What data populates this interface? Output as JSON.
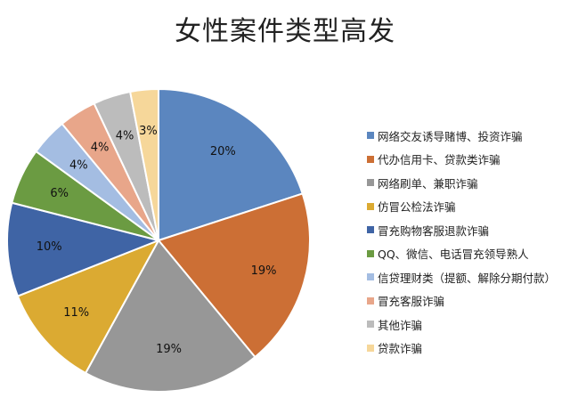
{
  "chart_data": {
    "type": "pie",
    "title": "女性案件类型高发",
    "categories": [
      "网络交友诱导赌博、投资诈骗",
      "代办信用卡、贷款类诈骗",
      "网络刷单、兼职诈骗",
      "仿冒公检法诈骗",
      "冒充购物客服退款诈骗",
      "QQ、微信、电话冒充领导熟人",
      "信贷理财类（提额、解除分期付款）",
      "冒充客服诈骗",
      "其他诈骗",
      "贷款诈骗"
    ],
    "values": [
      20,
      19,
      19,
      11,
      10,
      6,
      4,
      4,
      4,
      3
    ],
    "value_labels": [
      "20%",
      "19%",
      "19%",
      "11%",
      "10%",
      "6%",
      "4%",
      "4%",
      "4%",
      "3%"
    ],
    "colors": [
      "#5b86bf",
      "#cc6f35",
      "#979797",
      "#dbaa32",
      "#3f64a5",
      "#6b9b42",
      "#a4bde2",
      "#e8a68a",
      "#bcbcbc",
      "#f6d79a"
    ],
    "legend_position": "right",
    "start_angle_deg": 0,
    "direction": "clockwise"
  }
}
